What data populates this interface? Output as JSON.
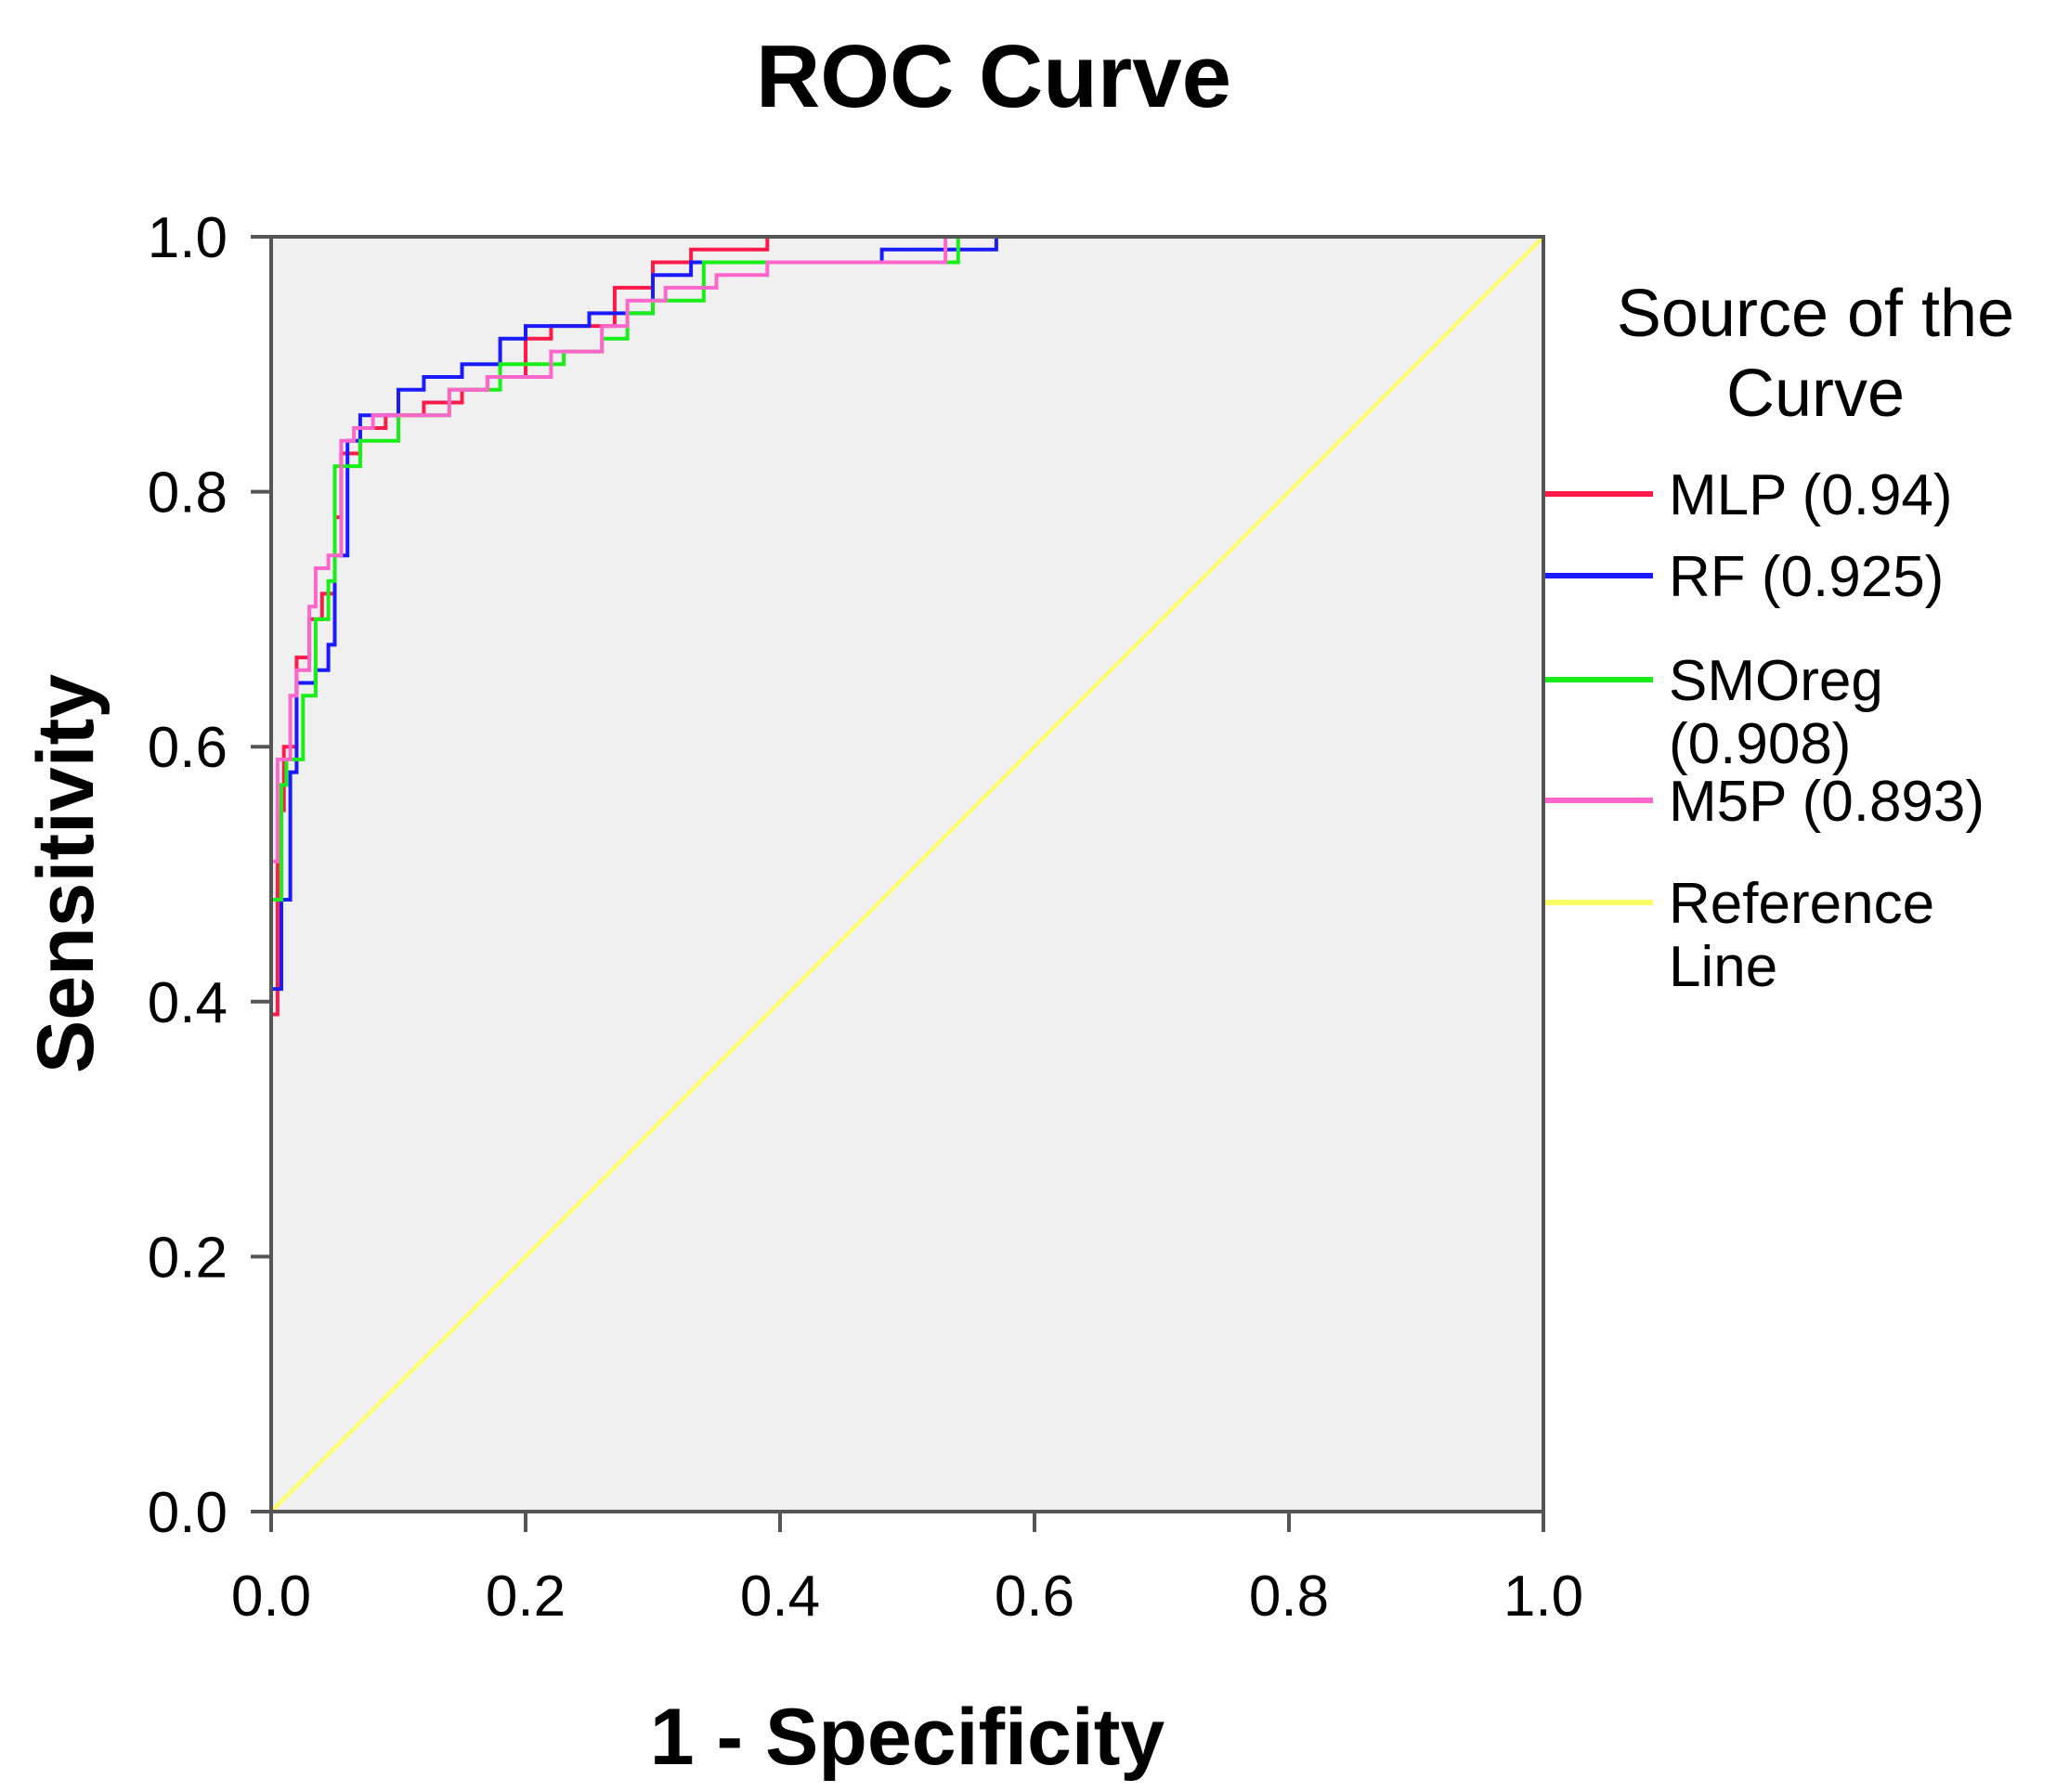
{
  "chart_data": {
    "type": "line",
    "title": "ROC Curve",
    "xlabel": "1 - Specificity",
    "ylabel": "Sensitivity",
    "xlim": [
      0,
      1
    ],
    "ylim": [
      0,
      1
    ],
    "xticks": [
      "0.0",
      "0.2",
      "0.4",
      "0.6",
      "0.8",
      "1.0"
    ],
    "yticks": [
      "0.0",
      "0.2",
      "0.4",
      "0.6",
      "0.8",
      "1.0"
    ],
    "grid": false,
    "background_color": "#f0f0f0",
    "legend_title": [
      "Source of the",
      "Curve"
    ],
    "legend_position": "right",
    "series": [
      {
        "name": "MLP (0.94)",
        "legend_lines": [
          "MLP (0.94)"
        ],
        "color": "#ff1a4a",
        "x": [
          0,
          0,
          0.005,
          0.005,
          0.01,
          0.01,
          0.02,
          0.02,
          0.03,
          0.03,
          0.04,
          0.04,
          0.05,
          0.05,
          0.055,
          0.055,
          0.07,
          0.07,
          0.09,
          0.09,
          0.12,
          0.12,
          0.15,
          0.15,
          0.17,
          0.17,
          0.2,
          0.2,
          0.22,
          0.22,
          0.27,
          0.27,
          0.3,
          0.3,
          0.33,
          0.33,
          0.39,
          0.39,
          0.59,
          0.59,
          1
        ],
        "y": [
          0,
          0.39,
          0.39,
          0.55,
          0.55,
          0.6,
          0.6,
          0.67,
          0.67,
          0.7,
          0.7,
          0.72,
          0.72,
          0.78,
          0.78,
          0.83,
          0.83,
          0.85,
          0.85,
          0.86,
          0.86,
          0.87,
          0.87,
          0.88,
          0.88,
          0.89,
          0.89,
          0.92,
          0.92,
          0.93,
          0.93,
          0.96,
          0.96,
          0.98,
          0.98,
          0.99,
          0.99,
          1.0,
          1.0,
          1.0,
          1.0
        ]
      },
      {
        "name": "RF (0.925)",
        "legend_lines": [
          "RF (0.925)"
        ],
        "color": "#1a1aff",
        "x": [
          0,
          0,
          0.008,
          0.008,
          0.015,
          0.015,
          0.02,
          0.02,
          0.035,
          0.035,
          0.045,
          0.045,
          0.05,
          0.05,
          0.06,
          0.06,
          0.07,
          0.07,
          0.1,
          0.1,
          0.12,
          0.12,
          0.15,
          0.15,
          0.18,
          0.18,
          0.2,
          0.2,
          0.25,
          0.25,
          0.3,
          0.3,
          0.33,
          0.33,
          0.35,
          0.35,
          0.48,
          0.48,
          0.57,
          0.57,
          1
        ],
        "y": [
          0,
          0.41,
          0.41,
          0.48,
          0.48,
          0.58,
          0.58,
          0.65,
          0.65,
          0.66,
          0.66,
          0.68,
          0.68,
          0.75,
          0.75,
          0.84,
          0.84,
          0.86,
          0.86,
          0.88,
          0.88,
          0.89,
          0.89,
          0.9,
          0.9,
          0.92,
          0.92,
          0.93,
          0.93,
          0.94,
          0.94,
          0.97,
          0.97,
          0.98,
          0.98,
          0.98,
          0.98,
          0.99,
          0.99,
          1.0,
          1.0
        ]
      },
      {
        "name": "SMOreg (0.908)",
        "legend_lines": [
          "SMOreg",
          "(0.908)"
        ],
        "color": "#1aee1a",
        "x": [
          0,
          0,
          0.008,
          0.008,
          0.012,
          0.012,
          0.025,
          0.025,
          0.035,
          0.035,
          0.045,
          0.045,
          0.05,
          0.05,
          0.07,
          0.07,
          0.1,
          0.1,
          0.14,
          0.14,
          0.18,
          0.18,
          0.23,
          0.23,
          0.26,
          0.26,
          0.28,
          0.28,
          0.3,
          0.3,
          0.34,
          0.34,
          0.4,
          0.4,
          0.54,
          0.54,
          0.6,
          0.6,
          1
        ],
        "y": [
          0,
          0.48,
          0.48,
          0.57,
          0.57,
          0.59,
          0.59,
          0.64,
          0.64,
          0.7,
          0.7,
          0.73,
          0.73,
          0.82,
          0.82,
          0.84,
          0.84,
          0.86,
          0.86,
          0.88,
          0.88,
          0.9,
          0.9,
          0.91,
          0.91,
          0.92,
          0.92,
          0.94,
          0.94,
          0.95,
          0.95,
          0.98,
          0.98,
          0.98,
          0.98,
          1.0,
          1.0,
          1.0,
          1.0
        ]
      },
      {
        "name": "M5P (0.893)",
        "legend_lines": [
          "M5P (0.893)"
        ],
        "color": "#ff66cc",
        "x": [
          0,
          0,
          0.005,
          0.005,
          0.015,
          0.015,
          0.02,
          0.02,
          0.03,
          0.03,
          0.035,
          0.035,
          0.045,
          0.045,
          0.055,
          0.055,
          0.065,
          0.065,
          0.08,
          0.08,
          0.14,
          0.14,
          0.17,
          0.17,
          0.22,
          0.22,
          0.26,
          0.26,
          0.28,
          0.28,
          0.31,
          0.31,
          0.35,
          0.35,
          0.39,
          0.39,
          0.53,
          0.53,
          0.6,
          0.6,
          1
        ],
        "y": [
          0,
          0.51,
          0.51,
          0.59,
          0.59,
          0.64,
          0.64,
          0.66,
          0.66,
          0.71,
          0.71,
          0.74,
          0.74,
          0.75,
          0.75,
          0.84,
          0.84,
          0.85,
          0.85,
          0.86,
          0.86,
          0.88,
          0.88,
          0.89,
          0.89,
          0.91,
          0.91,
          0.93,
          0.93,
          0.95,
          0.95,
          0.96,
          0.96,
          0.97,
          0.97,
          0.98,
          0.98,
          1.0,
          1.0,
          1.0,
          1.0
        ]
      },
      {
        "name": "Reference Line",
        "legend_lines": [
          "Reference",
          "Line"
        ],
        "color": "#ffff66",
        "x": [
          0,
          1
        ],
        "y": [
          0,
          1
        ]
      }
    ]
  }
}
